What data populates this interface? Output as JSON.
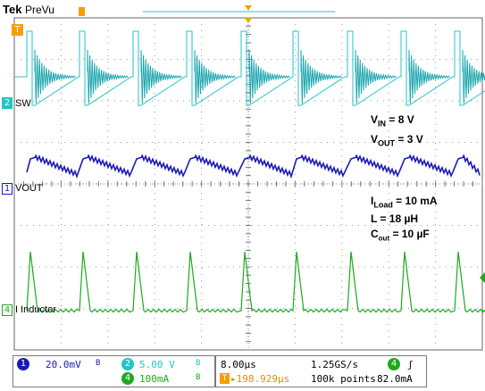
{
  "header": {
    "brand": "Tek",
    "mode": "PreVu"
  },
  "channels": {
    "ch1": {
      "marker": "1",
      "label": "VOUT",
      "color": "#1a1ab8"
    },
    "ch2": {
      "marker": "2",
      "label": "SW",
      "color": "#22c4c8"
    },
    "ch4": {
      "marker": "4",
      "label": "I Inductor",
      "color": "#1caa1c"
    }
  },
  "trigger_marker": "T",
  "annotations": {
    "vin": {
      "sym": "V",
      "sub": "IN",
      "rest": " = 8 V"
    },
    "vout": {
      "sym": "V",
      "sub": "OUT",
      "rest": " = 3 V"
    },
    "iload": {
      "sym": "I",
      "sub": "Load",
      "rest": " = 10 mA"
    },
    "inductance": "L = 18 µH",
    "cout": {
      "sym": "C",
      "sub": "out",
      "rest": " = 10 µF"
    }
  },
  "status": {
    "ch1_scale": "20.0mV",
    "ch2_scale": "5.00 V",
    "ch4_scale": "100mA",
    "bw_symbol": "B",
    "timebase": "8.00µs",
    "sample_rate": "1.25GS/s",
    "trigger_position": "▸198.929µs",
    "record_length": "100k points",
    "trigger_source": "4",
    "trigger_slope": "ʃ",
    "trigger_level": "82.0mA"
  },
  "colors": {
    "grid": "#9a9a9a",
    "frame": "#555555",
    "accent": "#f5a000"
  }
}
